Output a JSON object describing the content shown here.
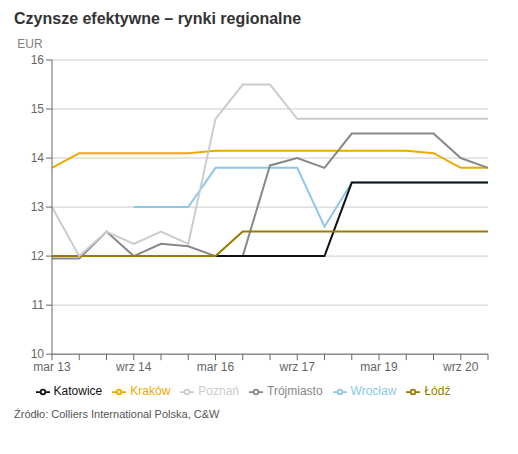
{
  "chart_data": {
    "type": "line",
    "title": "Czynsze efektywne – rynki regionalne",
    "ylabel": "EUR",
    "annotations": [
      "Źródło: Colliers International Polska, C&W"
    ],
    "categories": [
      "mar 13",
      null,
      null,
      "wrz 14",
      null,
      null,
      "mar 16",
      null,
      null,
      "wrz 17",
      null,
      null,
      "mar 19",
      null,
      null,
      "wrz 20",
      null
    ],
    "series": [
      {
        "name": "Kraków",
        "color": "#F0A800",
        "values": [
          13.8,
          14.1,
          14.1,
          14.1,
          14.1,
          14.1,
          14.15,
          14.15,
          14.15,
          14.15,
          14.15,
          14.15,
          14.15,
          14.15,
          14.1,
          13.8,
          13.8
        ]
      },
      {
        "name": "Wrocław",
        "color": "#8DC8E8",
        "values": [
          null,
          null,
          null,
          13.0,
          13.0,
          13.0,
          13.8,
          13.8,
          13.8,
          13.8,
          12.6,
          13.5,
          13.5,
          13.5,
          13.5,
          13.5,
          13.5
        ]
      },
      {
        "name": "Trójmiasto",
        "color": "#888888",
        "values": [
          11.95,
          11.95,
          12.5,
          12.0,
          12.25,
          12.2,
          12.0,
          12.0,
          13.85,
          14.0,
          13.8,
          14.5,
          14.5,
          14.5,
          14.5,
          14.0,
          13.8
        ]
      },
      {
        "name": "Katowice",
        "color": "#111111",
        "values": [
          12.0,
          12.0,
          12.0,
          12.0,
          12.0,
          12.0,
          12.0,
          12.0,
          12.0,
          12.0,
          12.0,
          13.5,
          13.5,
          13.5,
          13.5,
          13.5,
          13.5
        ]
      },
      {
        "name": "Łódź",
        "color": "#9B7A00",
        "values": [
          12.0,
          12.0,
          12.0,
          12.0,
          12.0,
          12.0,
          12.0,
          12.5,
          12.5,
          12.5,
          12.5,
          12.5,
          12.5,
          12.5,
          12.5,
          12.5,
          12.5
        ]
      },
      {
        "name": "Poznań",
        "color": "#CCCCCC",
        "values": [
          13.0,
          12.0,
          12.5,
          12.25,
          12.5,
          12.25,
          14.8,
          15.5,
          15.5,
          14.8,
          14.8,
          14.8,
          14.8,
          14.8,
          14.8,
          14.8,
          14.8
        ]
      }
    ],
    "ylim": [
      10,
      16
    ],
    "yticks": [
      10,
      11,
      12,
      13,
      14,
      15,
      16
    ],
    "grid": true,
    "legend": "bottom"
  }
}
